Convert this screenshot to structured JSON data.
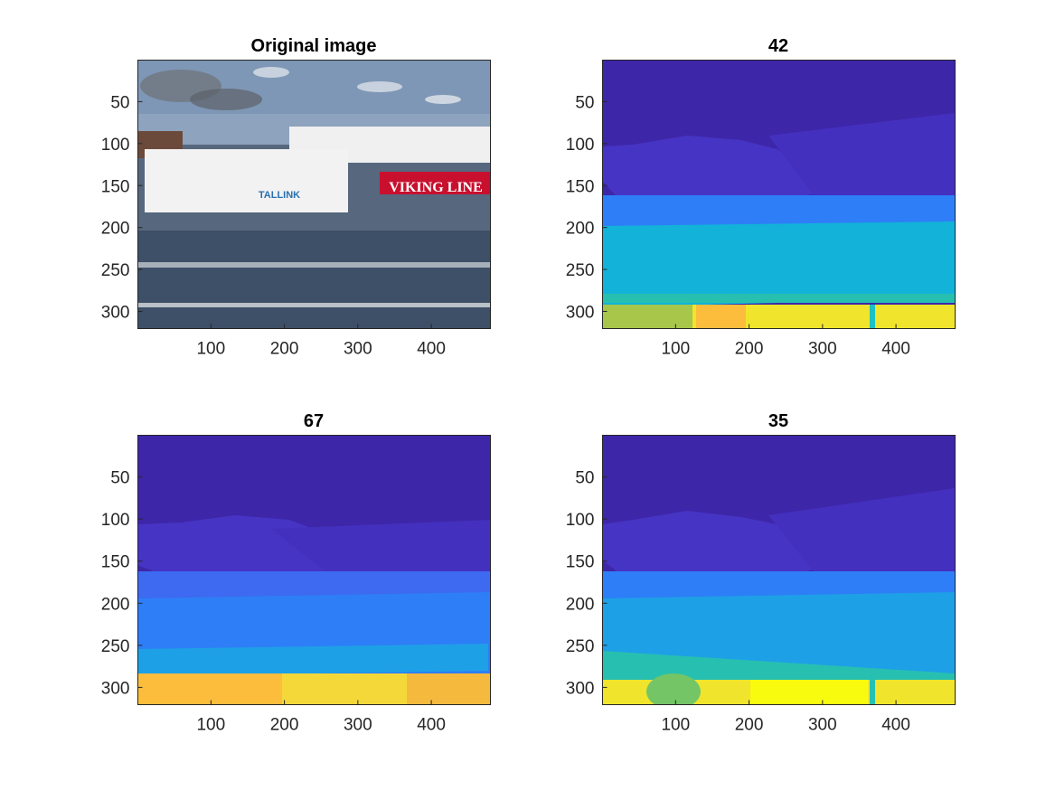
{
  "colors": {
    "colormap": "parula",
    "deep_blue": "#3e26a8",
    "ship_blue": "#4634c4",
    "mid_blue": "#2e7ef7",
    "cyan": "#12b2d9",
    "teal": "#27c0b0",
    "orange": "#fcbd3d",
    "yellow": "#f0e52c",
    "bright_yellow": "#f9fb0e",
    "green": "#74c566"
  },
  "chart_data": [
    {
      "type": "image",
      "title": "Original image",
      "x_ticks": [
        100,
        200,
        300,
        400
      ],
      "y_ticks": [
        50,
        100,
        150,
        200,
        250,
        300
      ],
      "xlim": [
        0.5,
        480.5
      ],
      "ylim": [
        0.5,
        320.5
      ],
      "y_reversed": true,
      "content": "photograph",
      "ship_text": [
        "VIKING LINE",
        "TALLINK"
      ]
    },
    {
      "type": "heatmap",
      "title": "42",
      "x_ticks": [
        100,
        200,
        300,
        400
      ],
      "y_ticks": [
        50,
        100,
        150,
        200,
        250,
        300
      ],
      "xlim": [
        0.5,
        480.5
      ],
      "ylim": [
        0.5,
        320.5
      ],
      "y_reversed": true,
      "colormap": "parula"
    },
    {
      "type": "heatmap",
      "title": "67",
      "x_ticks": [
        100,
        200,
        300,
        400
      ],
      "y_ticks": [
        50,
        100,
        150,
        200,
        250,
        300
      ],
      "xlim": [
        0.5,
        480.5
      ],
      "ylim": [
        0.5,
        320.5
      ],
      "y_reversed": true,
      "colormap": "parula"
    },
    {
      "type": "heatmap",
      "title": "35",
      "x_ticks": [
        100,
        200,
        300,
        400
      ],
      "y_ticks": [
        50,
        100,
        150,
        200,
        250,
        300
      ],
      "xlim": [
        0.5,
        480.5
      ],
      "ylim": [
        0.5,
        320.5
      ],
      "y_reversed": true,
      "colormap": "parula"
    }
  ]
}
